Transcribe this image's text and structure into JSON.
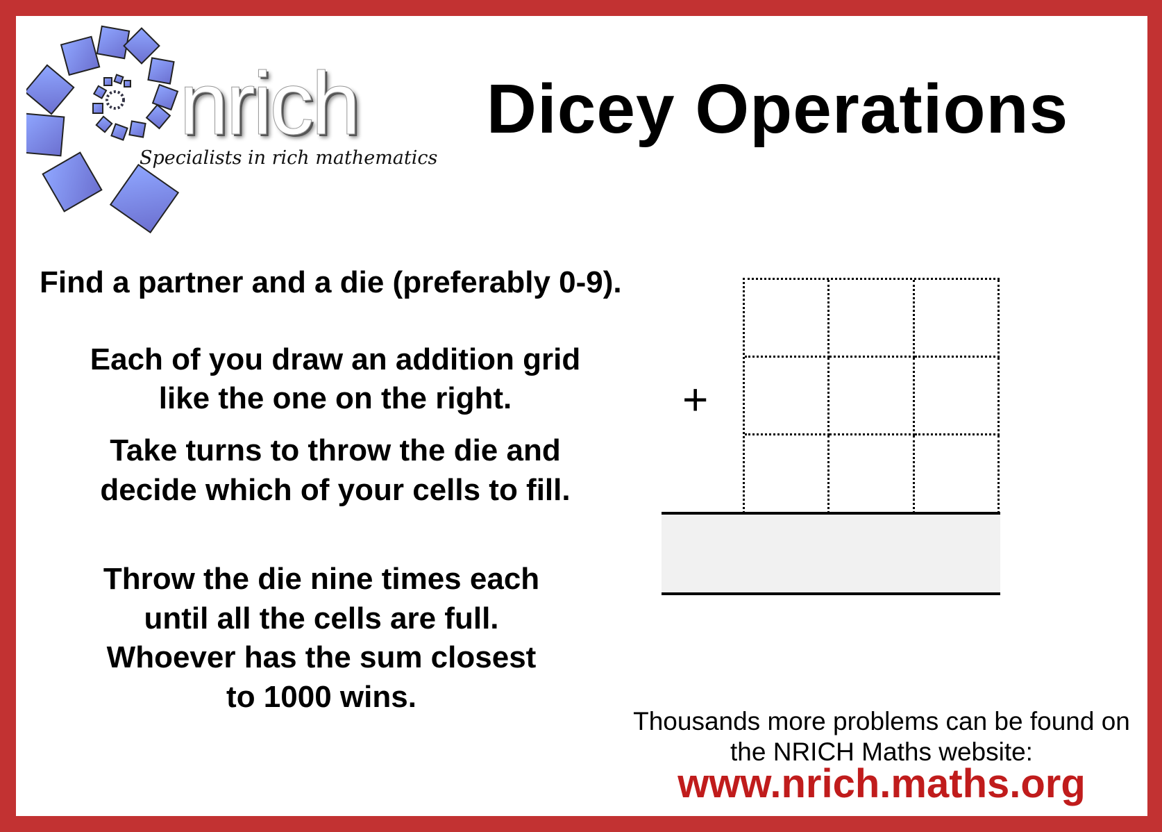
{
  "logo": {
    "wordmark": "nrich",
    "tagline": "Specialists in rich mathematics"
  },
  "title": "Dicey Operations",
  "instructions": {
    "intro": "Find a partner and a die (preferably 0-9).",
    "p1": [
      "Each of you draw an addition grid",
      "like the one on the right."
    ],
    "p2": [
      "Take turns to throw the die and",
      "decide which of your cells to fill."
    ],
    "p3": [
      "Throw the die nine times each",
      "until all the cells are full.",
      "Whoever has the sum closest",
      "to 1000 wins."
    ]
  },
  "grid": {
    "operator": "+",
    "rows": 3,
    "cols": 3
  },
  "footer": {
    "line1": "Thousands more problems can be found on",
    "line2": "the NRICH Maths website:",
    "url": "www.nrich.maths.org"
  },
  "colors": {
    "border": "#c23232",
    "url": "#c01c1c",
    "answer_fill": "#f1f1f1",
    "logo_squares": "#7f86e0"
  }
}
